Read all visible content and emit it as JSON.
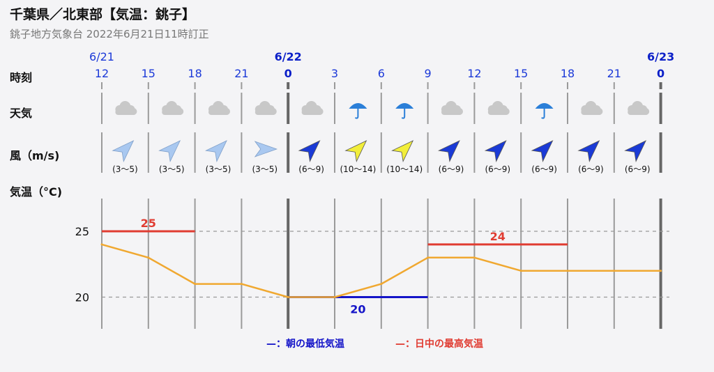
{
  "header": {
    "title": "千葉県／北東部【気温：銚子】",
    "subtitle": "銚子地方気象台 2022年6月21日11時訂正"
  },
  "row_labels": {
    "time": "時刻",
    "weather": "天気",
    "wind": "風（m/s)",
    "temp": "気温（°C)"
  },
  "dates": [
    {
      "label": "6/21",
      "slot": 0,
      "day": false
    },
    {
      "label": "6/22",
      "slot": 4,
      "day": true
    },
    {
      "label": "6/23",
      "slot": 12,
      "day": true
    }
  ],
  "hours": [
    "12",
    "15",
    "18",
    "21",
    "0",
    "3",
    "6",
    "9",
    "12",
    "15",
    "18",
    "21",
    "0"
  ],
  "day_boundaries": [
    4,
    12
  ],
  "weather": [
    "cloudy-icon",
    "cloudy-icon",
    "cloudy-icon",
    "cloudy-icon",
    "cloudy-icon",
    "umbrella-icon",
    "umbrella-icon",
    "cloudy-icon",
    "cloudy-icon",
    "umbrella-icon",
    "cloudy-icon",
    "cloudy-icon"
  ],
  "wind": [
    {
      "speed": "(3〜5)",
      "dir": "SW",
      "level": "light"
    },
    {
      "speed": "(3〜5)",
      "dir": "SW",
      "level": "light"
    },
    {
      "speed": "(3〜5)",
      "dir": "SW",
      "level": "light"
    },
    {
      "speed": "(3〜5)",
      "dir": "W",
      "level": "light"
    },
    {
      "speed": "(6〜9)",
      "dir": "SW",
      "level": "moderate"
    },
    {
      "speed": "(10〜14)",
      "dir": "SW",
      "level": "strong"
    },
    {
      "speed": "(10〜14)",
      "dir": "SW",
      "level": "strong"
    },
    {
      "speed": "(6〜9)",
      "dir": "SW",
      "level": "moderate"
    },
    {
      "speed": "(6〜9)",
      "dir": "SW",
      "level": "moderate"
    },
    {
      "speed": "(6〜9)",
      "dir": "SW",
      "level": "moderate"
    },
    {
      "speed": "(6〜9)",
      "dir": "SW",
      "level": "moderate"
    },
    {
      "speed": "(6〜9)",
      "dir": "SW",
      "level": "moderate"
    }
  ],
  "colors": {
    "temp_line": "#f0a830",
    "min_line": "#1414c8",
    "max_line": "#e03c32",
    "wind_light": "#a9c8f0",
    "wind_moderate": "#1a3ad6",
    "wind_strong": "#f2ee3a",
    "umbrella": "#2b7fd8",
    "cloud": "#c8c8c8"
  },
  "chart_data": {
    "type": "line",
    "x": [
      "12",
      "15",
      "18",
      "21",
      "0",
      "3",
      "6",
      "9",
      "12",
      "15",
      "18",
      "21",
      "0"
    ],
    "series": [
      {
        "values": [
          24,
          23,
          21,
          21,
          20,
          20,
          21,
          23,
          23,
          22,
          22,
          22,
          22
        ]
      }
    ],
    "max_temp": [
      {
        "label": "25",
        "value": 25,
        "from": 0,
        "to": 2
      },
      {
        "label": "24",
        "value": 24,
        "from": 7,
        "to": 10
      }
    ],
    "min_temp": [
      {
        "label": "20",
        "value": 20,
        "from": 4,
        "to": 7
      }
    ],
    "yticks": [
      20,
      25
    ],
    "ylim": [
      17.5,
      27.5
    ],
    "grid": true
  },
  "legend": {
    "min": "—：朝の最低気温",
    "max": "—：日中の最高気温"
  }
}
